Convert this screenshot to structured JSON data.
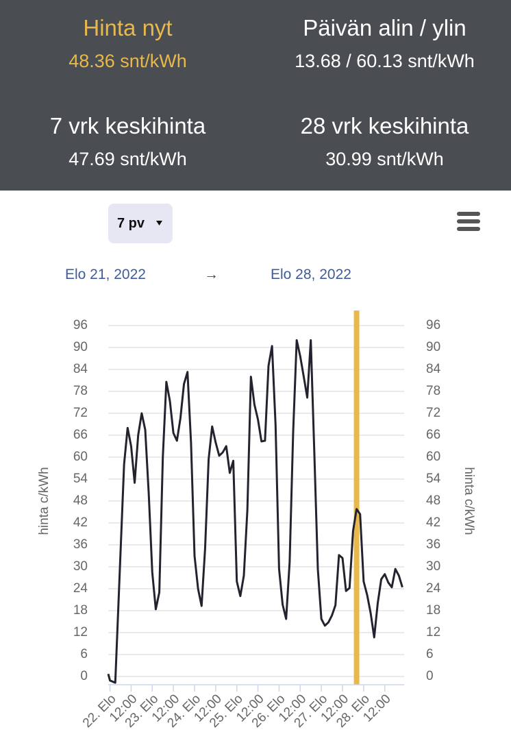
{
  "header": {
    "stats": [
      {
        "title": "Hinta nyt",
        "value": "48.36 snt/kWh",
        "highlight": true
      },
      {
        "title": "Päivän alin / ylin",
        "value": "13.68 / 60.13 snt/kWh"
      },
      {
        "title": "7 vrk keskihinta",
        "value": "47.69 snt/kWh"
      },
      {
        "title": "28 vrk keskihinta",
        "value": "30.99 snt/kWh"
      }
    ]
  },
  "toolbar": {
    "period": "7 pv"
  },
  "range": {
    "start": "Elo 21, 2022",
    "separator": "→",
    "end": "Elo 28, 2022"
  },
  "chart_data": {
    "type": "line",
    "ylabel": "hinta c/kWh",
    "y2label": "hinta c/kWh",
    "xlim": [
      -1,
      167
    ],
    "ylim": [
      0,
      96
    ],
    "y2lim": [
      0,
      96
    ],
    "yticks": [
      0,
      6,
      12,
      18,
      24,
      30,
      36,
      42,
      48,
      54,
      60,
      66,
      72,
      78,
      84,
      90,
      96
    ],
    "y2ticks": [
      0,
      6,
      12,
      18,
      24,
      30,
      36,
      42,
      48,
      54,
      60,
      66,
      72,
      78,
      84,
      90,
      96
    ],
    "xticks": [
      {
        "value": 0,
        "label": "22. Elo"
      },
      {
        "value": 12,
        "label": "12:00"
      },
      {
        "value": 24,
        "label": "23. Elo"
      },
      {
        "value": 36,
        "label": "12:00"
      },
      {
        "value": 48,
        "label": "24. Elo"
      },
      {
        "value": 60,
        "label": "12:00"
      },
      {
        "value": 72,
        "label": "25. Elo"
      },
      {
        "value": 84,
        "label": "12:00"
      },
      {
        "value": 96,
        "label": "26. Elo"
      },
      {
        "value": 108,
        "label": "12:00"
      },
      {
        "value": 120,
        "label": "27. Elo"
      },
      {
        "value": 132,
        "label": "12:00"
      },
      {
        "value": 144,
        "label": "28. Elo"
      },
      {
        "value": 156,
        "label": "12:00"
      }
    ],
    "grid": true,
    "now_x": 140,
    "now_color": "#e8b84a",
    "series": [
      {
        "color": "#23232f",
        "x": [
          -1,
          0,
          3,
          8,
          10,
          12,
          14,
          16,
          18,
          20,
          22,
          24,
          26,
          28,
          30,
          32,
          34,
          36,
          38,
          40,
          42,
          44,
          46,
          48,
          50,
          52,
          54,
          56,
          58,
          60,
          62,
          64,
          66,
          68,
          70,
          72,
          74,
          76,
          78,
          80,
          82,
          84,
          86,
          88,
          90,
          92,
          94,
          96,
          98,
          100,
          102,
          104,
          106,
          108,
          110,
          112,
          114,
          116,
          118,
          120,
          122,
          124,
          126,
          128,
          130,
          132,
          134,
          136,
          138,
          140,
          142,
          144,
          146,
          148,
          150,
          152,
          154,
          156,
          158,
          160,
          162,
          164,
          166
        ],
        "values": [
          0.7,
          -1.1,
          -1.7,
          58,
          68,
          63,
          53,
          66,
          72,
          67.5,
          50,
          28.5,
          18.4,
          23,
          60,
          80.6,
          75.4,
          66.6,
          64.5,
          70.7,
          80,
          83.3,
          64,
          33,
          24,
          19.3,
          35,
          59.4,
          68.4,
          64,
          60.4,
          61.3,
          63,
          55.7,
          59,
          26,
          22,
          27.6,
          45.6,
          82,
          74.4,
          70.3,
          64.3,
          64.5,
          85,
          90.4,
          68.8,
          29.4,
          19.7,
          15.75,
          31.3,
          67,
          92,
          87.6,
          82,
          76.3,
          92,
          61.3,
          29.4,
          15.75,
          13.9,
          14.8,
          16.7,
          19.5,
          33.2,
          32.4,
          23.4,
          24.2,
          39.8,
          45.8,
          44.4,
          26,
          22.3,
          17.3,
          10.7,
          20,
          26.6,
          28,
          25.7,
          24.4,
          29.4,
          27.6,
          24.4
        ]
      }
    ]
  }
}
